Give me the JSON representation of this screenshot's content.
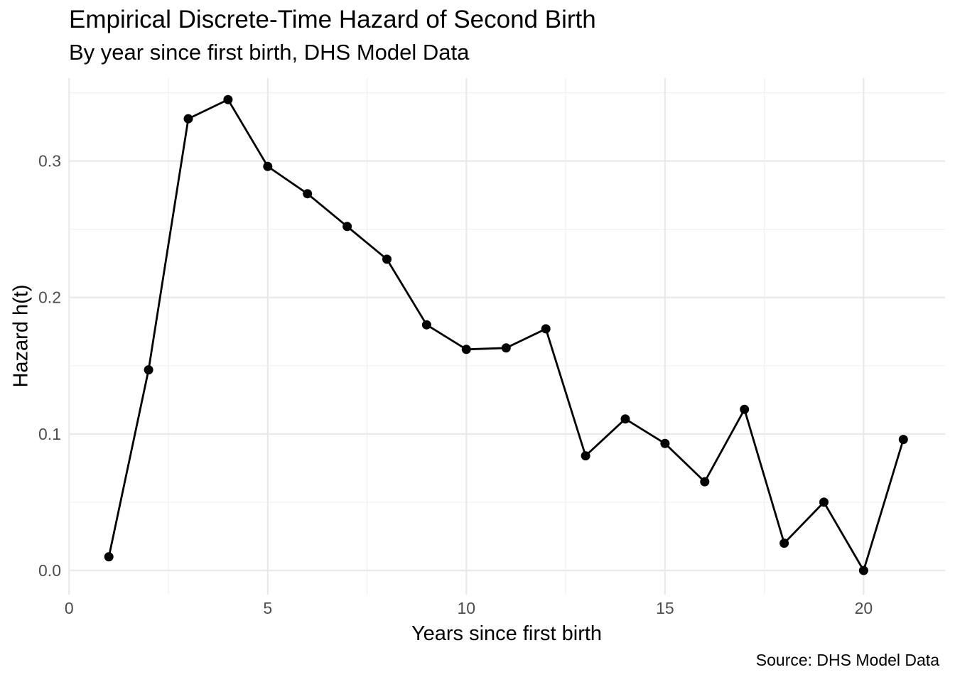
{
  "chart_data": {
    "type": "line",
    "title": "Empirical Discrete-Time Hazard of Second Birth",
    "subtitle": "By year since first birth, DHS Model Data",
    "caption": "Source: DHS Model Data",
    "xlabel": "Years since first birth",
    "ylabel": "Hazard h(t)",
    "x": [
      1,
      2,
      3,
      4,
      5,
      6,
      7,
      8,
      9,
      10,
      11,
      12,
      13,
      14,
      15,
      16,
      17,
      18,
      19,
      20,
      21
    ],
    "y": [
      0.01,
      0.147,
      0.331,
      0.345,
      0.296,
      0.276,
      0.252,
      0.228,
      0.18,
      0.162,
      0.163,
      0.177,
      0.084,
      0.111,
      0.093,
      0.065,
      0.118,
      0.02,
      0.05,
      0.0,
      0.096
    ],
    "xlim": [
      0,
      22.05
    ],
    "ylim": [
      -0.0177,
      0.3607
    ],
    "x_axis": {
      "major_ticks": [
        0,
        5,
        10,
        15,
        20
      ],
      "major_labels": [
        "0",
        "5",
        "10",
        "15",
        "20"
      ],
      "minor_ticks": [
        2.5,
        7.5,
        12.5,
        17.5
      ]
    },
    "y_axis": {
      "major_ticks": [
        0.0,
        0.1,
        0.2,
        0.3
      ],
      "major_labels": [
        "0.0",
        "0.1",
        "0.2",
        "0.3"
      ],
      "minor_ticks": [
        0.05,
        0.15,
        0.25,
        0.35
      ]
    },
    "grid": true,
    "legend": false,
    "colors": {
      "series": "#000000",
      "grid_major": "#E9E9E9",
      "grid_minor": "#F0F0F0",
      "tick_label": "#4D4D4D",
      "text": "#000000",
      "background": "#FFFFFF"
    }
  }
}
